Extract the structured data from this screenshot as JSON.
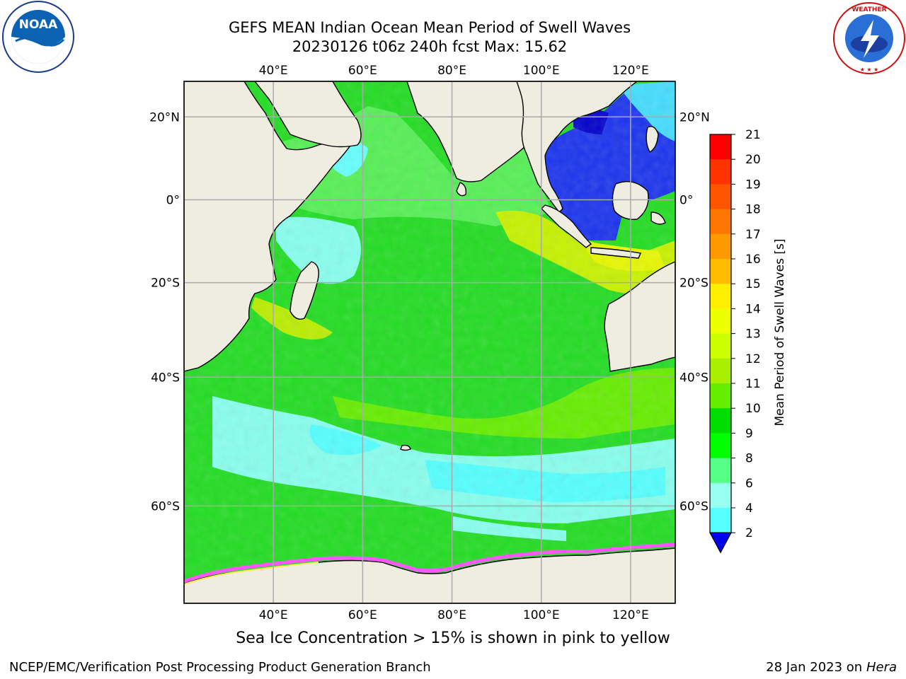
{
  "title": {
    "line1": "GEFS MEAN Indian Ocean Mean Period of Swell Waves",
    "line2": "20230126 t06z 240h fcst   Max: 15.62"
  },
  "map": {
    "lon_range": [
      20,
      130
    ],
    "lat_range": [
      -70,
      28
    ],
    "lon_ticks": [
      "40°E",
      "60°E",
      "80°E",
      "100°E",
      "120°E"
    ],
    "lat_ticks": [
      "20°N",
      "0°",
      "20°S",
      "40°S",
      "60°S"
    ],
    "land_color": "#eeeddf",
    "ocean_dominant_color": "#22dd22",
    "note": "Sea Ice Concentration > 15% is shown in pink to yellow"
  },
  "colorbar": {
    "label": "Mean Period of Swell Waves [s]",
    "ticks": [
      "21",
      "20",
      "19",
      "18",
      "17",
      "16",
      "15",
      "14",
      "13",
      "12",
      "11",
      "10",
      "9",
      "8",
      "6",
      "4",
      "2"
    ],
    "colors": [
      "#ff0000",
      "#ff3300",
      "#ff5500",
      "#ff7700",
      "#ff9900",
      "#ffbb00",
      "#ffee00",
      "#eeff00",
      "#ccff00",
      "#aaee00",
      "#66ee00",
      "#00dd00",
      "#00ff00",
      "#55ff88",
      "#99ffee",
      "#55ffff",
      "#00ffff",
      "#00aaff",
      "#0000ee"
    ],
    "under_color": "#0000ee"
  },
  "footer": {
    "left": "NCEP/EMC/Verification Post Processing Product Generation Branch",
    "right_date": "28 Jan 2023 on ",
    "right_machine": "Hera"
  },
  "logos": {
    "left": "noaa-logo",
    "right": "nws-logo",
    "noaa_text": "NOAA",
    "nws_ring_text": "NATIONAL WEATHER SERVICE",
    "noaa_ring_text": "NATIONAL OCEANIC AND ATMOSPHERIC ADMINISTRATION U.S. DEPARTMENT OF COMMERCE"
  }
}
